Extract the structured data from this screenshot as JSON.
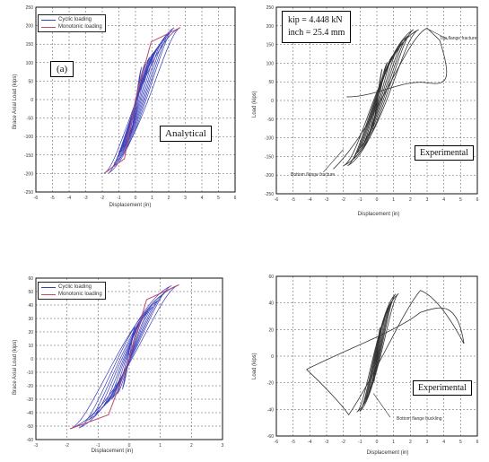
{
  "chart_data": [
    {
      "type": "line",
      "panel": "top-left",
      "ylabel": "Brace Axial Load (kips)",
      "xlabel": "Displacement (in)",
      "panel_label": "(a)",
      "box_label": "Analytical",
      "xlim": [
        -6,
        6
      ],
      "ylim": [
        -250,
        250
      ],
      "xticks": [
        -6,
        -5,
        -4,
        -3,
        -2,
        -1,
        0,
        1,
        2,
        3,
        4,
        5,
        6
      ],
      "yticks": [
        250,
        200,
        150,
        100,
        50,
        0,
        -50,
        -100,
        -150,
        -200,
        -250
      ],
      "legend": [
        "Cyclic loading",
        "Monotonic loading"
      ],
      "legend_position": "top-left",
      "series_colors": [
        "#3a3fb8",
        "#c04a6a"
      ],
      "peak": [
        2.7,
        195
      ],
      "trough": [
        -1.9,
        -200
      ],
      "amplitudes": [
        0.3,
        0.5,
        0.7,
        0.9,
        1.1,
        1.3,
        1.5,
        1.7,
        1.9,
        2.2
      ]
    },
    {
      "type": "line",
      "panel": "top-right",
      "ylabel": "Load (kips)",
      "xlabel": "Displacement (in)",
      "box_label": "Experimental",
      "info_lines": [
        "kip = 4.448 kN",
        "inch = 25.4 mm"
      ],
      "annotations": [
        "Top flange fracture",
        "Bottom flange fracture"
      ],
      "xlim": [
        -6,
        6
      ],
      "ylim": [
        -250,
        250
      ],
      "xticks": [
        -6,
        -5,
        -4,
        -3,
        -2,
        -1,
        0,
        1,
        2,
        3,
        4,
        5,
        6
      ],
      "yticks": [
        250,
        200,
        150,
        100,
        50,
        0,
        -50,
        -100,
        -150,
        -200,
        -250
      ],
      "peak": [
        2.5,
        190
      ],
      "trough": [
        -2.0,
        -175
      ],
      "amplitudes": [
        0.3,
        0.6,
        0.9,
        1.2,
        1.5,
        1.8,
        2.1,
        2.4
      ]
    },
    {
      "type": "line",
      "panel": "bottom-left",
      "ylabel": "Brace Axial Load (kips)",
      "xlabel": "Displacement (in)",
      "xlim": [
        -3,
        3
      ],
      "ylim": [
        -60,
        60
      ],
      "xticks": [
        -3,
        -2,
        -1,
        0,
        1,
        2,
        3
      ],
      "yticks": [
        60,
        50,
        40,
        30,
        20,
        10,
        0,
        -10,
        -20,
        -30,
        -40,
        -50,
        -60
      ],
      "legend": [
        "Cyclic loading",
        "Monotonic loading"
      ],
      "legend_position": "top-left",
      "series_colors": [
        "#3a3fb8",
        "#c04a6a"
      ],
      "peak": [
        1.6,
        55
      ],
      "trough": [
        -1.9,
        -52
      ],
      "amplitudes": [
        0.2,
        0.35,
        0.5,
        0.65,
        0.8,
        1.0,
        1.2,
        1.45,
        1.7
      ]
    },
    {
      "type": "line",
      "panel": "bottom-right",
      "ylabel": "Load (kips)",
      "xlabel": "Displacement (in)",
      "box_label": "Experimental",
      "annotations": [
        "Bottom flange buckling"
      ],
      "xlim": [
        -6,
        6
      ],
      "ylim": [
        -60,
        60
      ],
      "xticks": [
        -6,
        -5,
        -4,
        -3,
        -2,
        -1,
        0,
        1,
        2,
        3,
        4,
        5,
        6
      ],
      "yticks": [
        60,
        40,
        20,
        0,
        -20,
        -40,
        -60
      ],
      "peak": [
        1.3,
        47
      ],
      "trough": [
        -1.2,
        -42
      ],
      "amplitudes": [
        0.2,
        0.4,
        0.6,
        0.8,
        1.0,
        1.2,
        1.4
      ]
    }
  ]
}
